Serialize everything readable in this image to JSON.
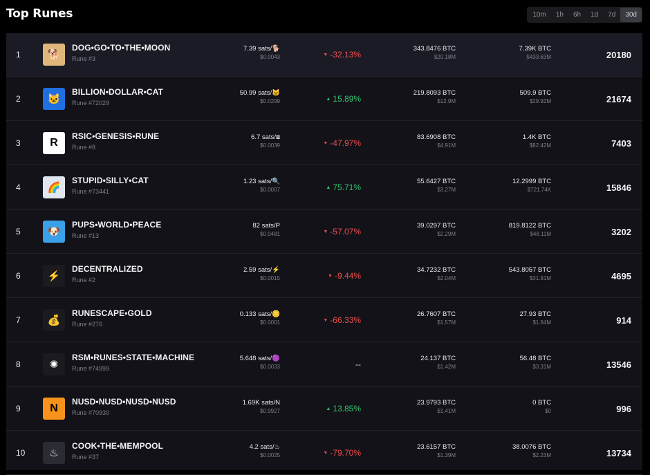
{
  "header": {
    "title": "Top Runes",
    "ranges": [
      "10m",
      "1h",
      "6h",
      "1d",
      "7d",
      "30d"
    ],
    "active_range": "30d"
  },
  "rows": [
    {
      "rank": "1",
      "name": "DOG•GO•TO•THE•MOON",
      "rune": "Rune #3",
      "price": "7.39 sats/🐕",
      "price_usd": "$0.0043",
      "change": "-32.13%",
      "change_dir": "neg",
      "volume": "343.8476 BTC",
      "volume_usd": "$20.18M",
      "mcap": "7.39K BTC",
      "mcap_usd": "$433.63M",
      "holders": "20180",
      "icon": "dog-icon",
      "avatar_bg": "#e0b77a",
      "glyph": "🐕"
    },
    {
      "rank": "2",
      "name": "BILLION•DOLLAR•CAT",
      "rune": "Rune #72029",
      "price": "50.99 sats/🐱",
      "price_usd": "$0.0299",
      "change": "15.89%",
      "change_dir": "pos",
      "volume": "219.8093 BTC",
      "volume_usd": "$12.9M",
      "mcap": "509.9 BTC",
      "mcap_usd": "$29.92M",
      "holders": "21674",
      "icon": "cat-icon",
      "avatar_bg": "#1f6fe0",
      "glyph": "🐱"
    },
    {
      "rank": "3",
      "name": "RSIC•GENESIS•RUNE",
      "rune": "Rune #8",
      "price": "6.7 sats/⧆",
      "price_usd": "$0.0039",
      "change": "-47.97%",
      "change_dir": "neg",
      "volume": "83.6908 BTC",
      "volume_usd": "$4.91M",
      "mcap": "1.4K BTC",
      "mcap_usd": "$82.42M",
      "holders": "7403",
      "icon": "rsic-logo-icon",
      "avatar_bg": "#ffffff",
      "glyph": "R"
    },
    {
      "rank": "4",
      "name": "STUPID•SILLY•CAT",
      "rune": "Rune #73441",
      "price": "1.23 sats/🔍",
      "price_usd": "$0.0007",
      "change": "75.71%",
      "change_dir": "pos",
      "volume": "55.6427 BTC",
      "volume_usd": "$3.27M",
      "mcap": "12.2999 BTC",
      "mcap_usd": "$721.74K",
      "holders": "15846",
      "icon": "rainbow-cat-icon",
      "avatar_bg": "#dfe6ef",
      "glyph": "🌈"
    },
    {
      "rank": "5",
      "name": "PUPS•WORLD•PEACE",
      "rune": "Rune #13",
      "price": "82 sats/P",
      "price_usd": "$0.0481",
      "change": "-57.07%",
      "change_dir": "neg",
      "volume": "39.0297 BTC",
      "volume_usd": "$2.29M",
      "mcap": "819.8122 BTC",
      "mcap_usd": "$48.11M",
      "holders": "3202",
      "icon": "pups-icon",
      "avatar_bg": "#3aa0e8",
      "glyph": "🐶"
    },
    {
      "rank": "6",
      "name": "DECENTRALIZED",
      "rune": "Rune #2",
      "price": "2.59 sats/⚡",
      "price_usd": "$0.0015",
      "change": "-9.44%",
      "change_dir": "neg",
      "volume": "34.7232 BTC",
      "volume_usd": "$2.04M",
      "mcap": "543.8057 BTC",
      "mcap_usd": "$31.91M",
      "holders": "4695",
      "icon": "lightning-icon",
      "avatar_bg": "#1a1a1f",
      "glyph": "⚡"
    },
    {
      "rank": "7",
      "name": "RUNESCAPE•GOLD",
      "rune": "Rune #276",
      "price": "0.133 sats/🪙",
      "price_usd": "$0.0001",
      "change": "-66.33%",
      "change_dir": "neg",
      "volume": "26.7607 BTC",
      "volume_usd": "$1.57M",
      "mcap": "27.93 BTC",
      "mcap_usd": "$1.64M",
      "holders": "914",
      "icon": "gold-coins-icon",
      "avatar_bg": "#1a1a1f",
      "glyph": "💰"
    },
    {
      "rank": "8",
      "name": "RSM•RUNES•STATE•MACHINE",
      "rune": "Rune #74999",
      "price": "5.648 sats/🟣",
      "price_usd": "$0.0033",
      "change": "--",
      "change_dir": "none",
      "volume": "24.137 BTC",
      "volume_usd": "$1.42M",
      "mcap": "56.48 BTC",
      "mcap_usd": "$3.31M",
      "holders": "13546",
      "icon": "network-icon",
      "avatar_bg": "#1a1a1f",
      "glyph": "✺"
    },
    {
      "rank": "9",
      "name": "NUSD•NUSD•NUSD•NUSD",
      "rune": "Rune #70930",
      "price": "1.69K sats/N",
      "price_usd": "$0.9927",
      "change": "13.85%",
      "change_dir": "pos",
      "volume": "23.9793 BTC",
      "volume_usd": "$1.41M",
      "mcap": "0 BTC",
      "mcap_usd": "$0",
      "holders": "996",
      "icon": "nusd-logo-icon",
      "avatar_bg": "#f7931a",
      "glyph": "N"
    },
    {
      "rank": "10",
      "name": "COOK•THE•MEMPOOL",
      "rune": "Rune #37",
      "price": "4.2 sats/♨",
      "price_usd": "$0.0025",
      "change": "-79.70%",
      "change_dir": "neg",
      "volume": "23.6157 BTC",
      "volume_usd": "$1.39M",
      "mcap": "38.0076 BTC",
      "mcap_usd": "$2.23M",
      "holders": "13734",
      "icon": "hot-springs-icon",
      "avatar_bg": "#2b2b33",
      "glyph": "♨"
    }
  ],
  "colors": {
    "negative": "#ef4d4d",
    "positive": "#33c26b"
  }
}
